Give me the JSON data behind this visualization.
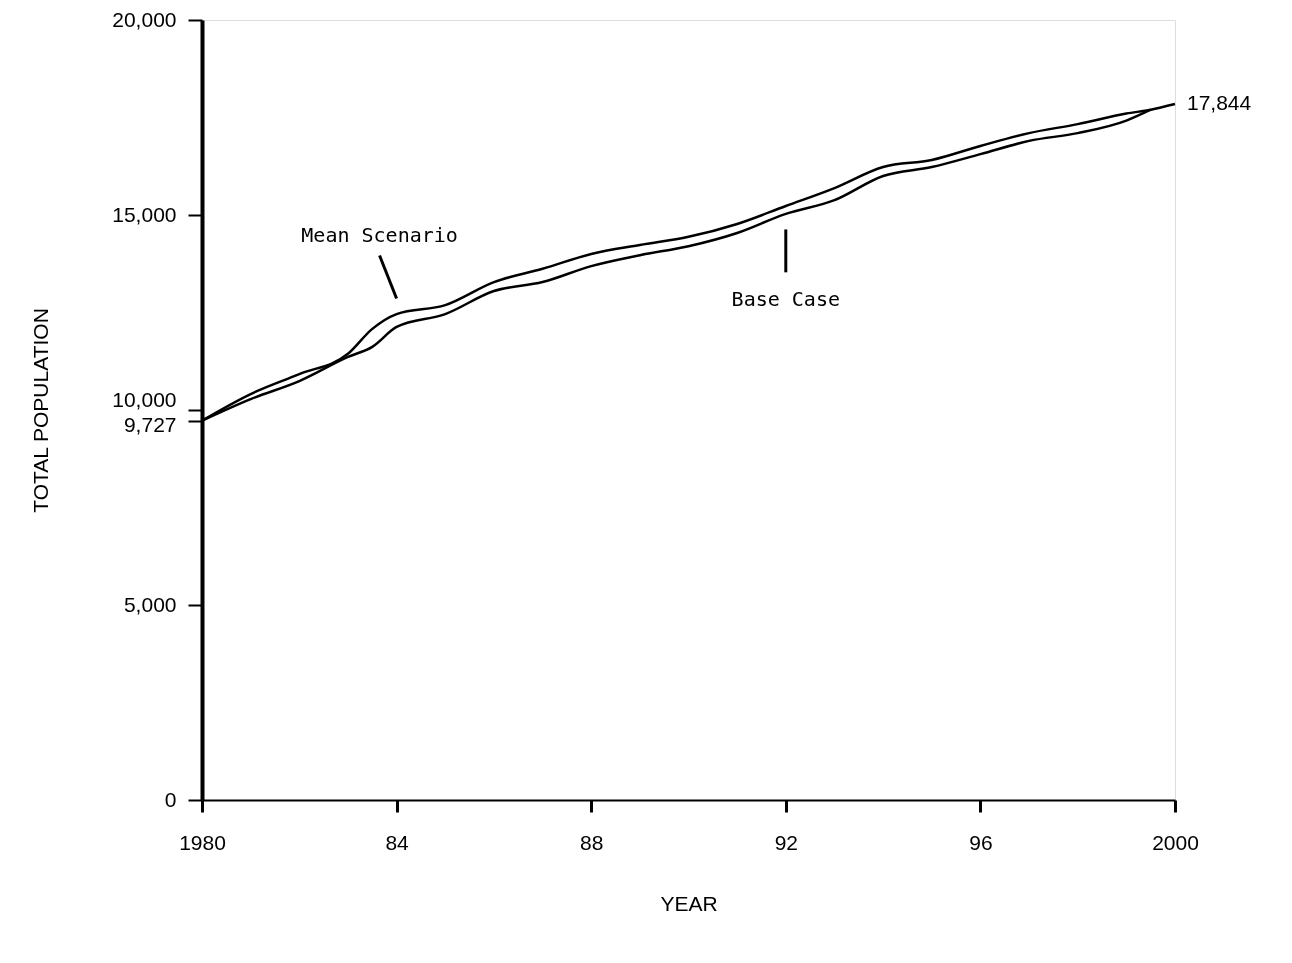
{
  "chart_data": {
    "type": "line",
    "xlabel": "YEAR",
    "ylabel": "TOTAL POPULATION",
    "x": [
      1980,
      1981,
      1982,
      1983,
      1983.5,
      1984,
      1985,
      1986,
      1987,
      1988,
      1989,
      1990,
      1991,
      1992,
      1993,
      1994,
      1995,
      1996,
      1997,
      1998,
      1999,
      1999.5,
      2000
    ],
    "series": [
      {
        "name": "Mean Scenario",
        "color": "#000000",
        "values": [
          9727,
          10410,
          10920,
          11440,
          12080,
          12460,
          12690,
          13280,
          13620,
          14000,
          14230,
          14440,
          14770,
          15230,
          15690,
          16230,
          16410,
          16770,
          17100,
          17330,
          17600,
          17700,
          17844
        ]
      },
      {
        "name": "Base Case",
        "color": "#000000",
        "x": [
          1980,
          1981,
          1982,
          1983,
          1983.5,
          1984,
          1985,
          1986,
          1987,
          1988,
          1989,
          1990,
          1991,
          1992,
          1993,
          1994,
          1995,
          1996,
          1997,
          1998,
          1999,
          1999.5
        ],
        "values": [
          9727,
          10280,
          10740,
          11360,
          11620,
          12130,
          12460,
          13050,
          13280,
          13690,
          13970,
          14200,
          14540,
          15030,
          15380,
          16000,
          16230,
          16560,
          16900,
          17100,
          17420,
          17700
        ]
      }
    ],
    "xlim": [
      1980,
      2000
    ],
    "xticks": [
      1980,
      {
        "value": 1984,
        "label": "84"
      },
      {
        "value": 1988,
        "label": "88"
      },
      {
        "value": 1992,
        "label": "92"
      },
      {
        "value": 1996,
        "label": "96"
      },
      {
        "value": 2000,
        "label": "2000"
      }
    ],
    "ylim": [
      0,
      20000
    ],
    "yticks": [
      {
        "value": 0,
        "label": "0"
      },
      {
        "value": 5000,
        "label": "5,000"
      },
      {
        "value": 9727,
        "label": "9,727"
      },
      {
        "value": 10000,
        "label": "10,000"
      },
      {
        "value": 15000,
        "label": "15,000"
      },
      {
        "value": 20000,
        "label": "20,000"
      }
    ],
    "annotations": [
      {
        "text": "17,844",
        "x": 2000,
        "y": 17844
      }
    ],
    "grid": false,
    "marker": "none",
    "line_style": "solid"
  }
}
